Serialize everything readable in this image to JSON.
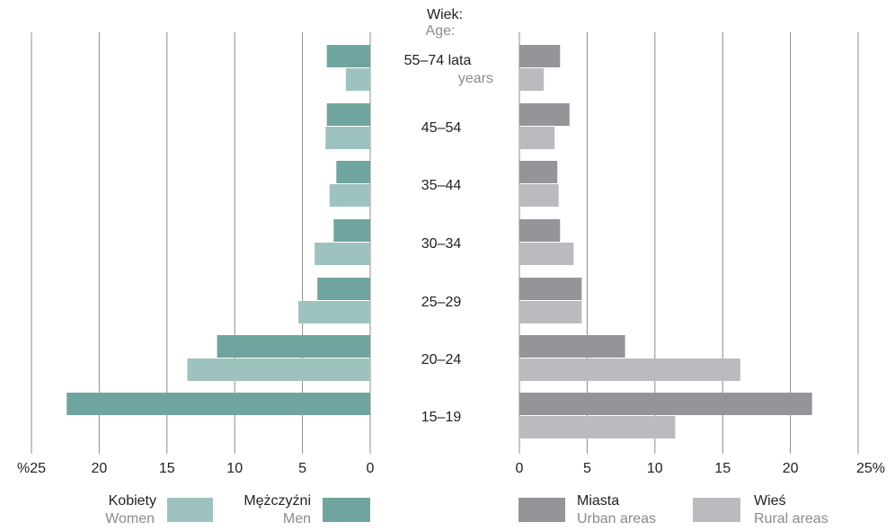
{
  "chart_data": [
    {
      "type": "bar",
      "orientation": "horizontal",
      "direction": "right-to-left",
      "categories": [
        "55–74 lata",
        "45–54",
        "35–44",
        "30–34",
        "25–29",
        "20–24",
        "15–19"
      ],
      "series": [
        {
          "name": "Mężczyźni",
          "name_en": "Men",
          "color": "#6fa59e",
          "values": [
            3.2,
            3.2,
            2.5,
            2.7,
            3.9,
            11.3,
            22.4
          ]
        },
        {
          "name": "Kobiety",
          "name_en": "Women",
          "color": "#9ec3bf",
          "values": [
            1.8,
            3.3,
            3.0,
            4.1,
            5.3,
            13.5,
            0
          ]
        }
      ],
      "xlim": [
        0,
        25
      ],
      "x_ticks": [
        "%25",
        "20",
        "15",
        "10",
        "5",
        "0"
      ],
      "grid": true
    },
    {
      "type": "bar",
      "orientation": "horizontal",
      "direction": "left-to-right",
      "categories": [
        "55–74 lata",
        "45–54",
        "35–44",
        "30–34",
        "25–29",
        "20–24",
        "15–19"
      ],
      "series": [
        {
          "name": "Miasta",
          "name_en": "Urban areas",
          "color": "#959599",
          "values": [
            3.0,
            3.7,
            2.8,
            3.0,
            4.6,
            7.8,
            21.6
          ]
        },
        {
          "name": "Wieś",
          "name_en": "Rural areas",
          "color": "#bbbbbf",
          "values": [
            1.8,
            2.6,
            2.9,
            4.0,
            4.6,
            16.3,
            11.5
          ]
        }
      ],
      "xlim": [
        0,
        25
      ],
      "x_ticks": [
        "0",
        "5",
        "10",
        "15",
        "20",
        "25%"
      ],
      "grid": true
    }
  ],
  "center_axis": {
    "title": "Wiek:",
    "title_en": "Age:",
    "first_label_unit": "years"
  },
  "legend": {
    "left": [
      {
        "pl": "Kobiety",
        "en": "Women",
        "color": "#9ec3bf"
      },
      {
        "pl": "Mężczyźni",
        "en": "Men",
        "color": "#6fa59e"
      }
    ],
    "right": [
      {
        "pl": "Miasta",
        "en": "Urban areas",
        "color": "#959599"
      },
      {
        "pl": "Wieś",
        "en": "Rural areas",
        "color": "#bbbbbf"
      }
    ]
  }
}
